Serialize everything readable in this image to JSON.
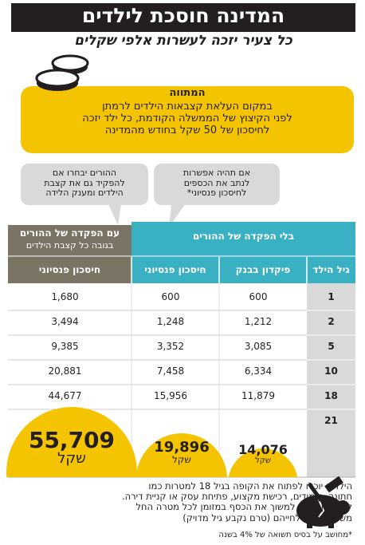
{
  "header": {
    "title": "המדינה חוסכת לילדים",
    "subtitle": "כל צעיר יזכה לעשרות אלפי שקלים"
  },
  "plan": {
    "title": "המתווה",
    "lines": [
      "במקום העלאת קצבאות הילדים לרמתן",
      "לפני הקיצוץ של הממשלה הקודמת, כל ילד יזכה",
      "לחיסכון של 50 שקל בחודש מהמדינה"
    ]
  },
  "bubbles": [
    [
      "אם תהיה אפשרות",
      "לנתב את הכספים",
      "לחיסכון פנסיוני*"
    ],
    [
      "ההורים יבחרו אם",
      "להפקיד גם את קצבת",
      "הילדים ומענק הלידה"
    ]
  ],
  "table": {
    "group_without": "בלי הפקדה של ההורים",
    "group_with": "עם הפקדה של ההורים",
    "group_with_note": "בגובה כל קצבת הילדים",
    "columns": [
      "גיל הילד",
      "פיקדון בבנק",
      "חיסכון פנסיוני",
      "חיסכון פנסיוני"
    ],
    "rows": [
      [
        "1",
        "600",
        "600",
        "1,680"
      ],
      [
        "2",
        "1,212",
        "1,248",
        "3,494"
      ],
      [
        "5",
        "3,085",
        "3,352",
        "9,385"
      ],
      [
        "10",
        "6,334",
        "7,458",
        "20,881"
      ],
      [
        "18",
        "11,879",
        "15,956",
        "44,677"
      ]
    ],
    "final_row": {
      "age": "21",
      "values": [
        "14,076",
        "19,896",
        "55,709"
      ],
      "unit": "שקל"
    }
  },
  "note": [
    "הילדים יוכלו לפתוח את הקופה בגיל 18 למטרות כמו",
    "חתונה, לימודים, רכישת מקצוע, פתיחת עסק או קניית דירה.",
    "לחילופין, יוכלו למשוך את הכסף במזומן לכל מטרה החל",
    "משנות ה־20 לחייהם (טרם נקבע גיל מדויק)"
  ],
  "footnote": "*מחושב על בסיס תשואה של 4% בשנה"
}
